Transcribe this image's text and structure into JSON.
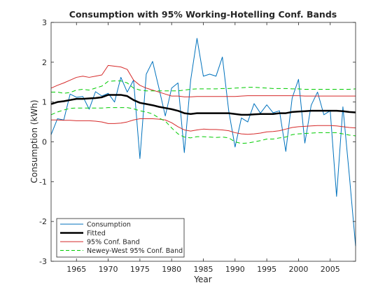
{
  "chart_data": {
    "type": "line",
    "title": "Consumption with 95% Working-Hotelling Conf. Bands",
    "xlabel": "Year",
    "ylabel": "Consumption (kWh)",
    "xlim": [
      1961,
      2009
    ],
    "ylim": [
      -3,
      3
    ],
    "xticks": [
      1965,
      1970,
      1975,
      1980,
      1985,
      1990,
      1995,
      2000,
      2005
    ],
    "yticks": [
      -3,
      -2,
      -1,
      0,
      1,
      2,
      3
    ],
    "grid": false,
    "legend_position": "bottom-left",
    "x": [
      1961,
      1962,
      1963,
      1964,
      1965,
      1966,
      1967,
      1968,
      1969,
      1970,
      1971,
      1972,
      1973,
      1974,
      1975,
      1976,
      1977,
      1978,
      1979,
      1980,
      1981,
      1982,
      1983,
      1984,
      1985,
      1986,
      1987,
      1988,
      1989,
      1990,
      1991,
      1992,
      1993,
      1994,
      1995,
      1996,
      1997,
      1998,
      1999,
      2000,
      2001,
      2002,
      2003,
      2004,
      2005,
      2006,
      2007,
      2008,
      2009
    ],
    "series": [
      {
        "name": "Consumption",
        "color": "#0072bd",
        "style": "solid",
        "values": [
          0.18,
          0.58,
          0.55,
          1.2,
          1.12,
          1.14,
          0.82,
          1.26,
          1.15,
          1.22,
          1.0,
          1.62,
          1.25,
          1.55,
          -0.42,
          1.7,
          2.02,
          1.35,
          0.65,
          1.35,
          1.48,
          -0.27,
          1.55,
          2.6,
          1.65,
          1.7,
          1.65,
          2.13,
          0.78,
          -0.13,
          0.6,
          0.5,
          0.96,
          0.72,
          0.93,
          0.73,
          0.78,
          -0.24,
          1.1,
          1.57,
          -0.03,
          0.92,
          1.25,
          0.68,
          0.78,
          -1.37,
          0.88,
          -0.82,
          -2.62
        ]
      },
      {
        "name": "Fitted",
        "color": "#000000",
        "style": "solid-thick",
        "values": [
          0.95,
          1.0,
          1.02,
          1.05,
          1.08,
          1.08,
          1.09,
          1.1,
          1.12,
          1.18,
          1.18,
          1.18,
          1.15,
          1.05,
          0.98,
          0.95,
          0.92,
          0.88,
          0.85,
          0.82,
          0.78,
          0.72,
          0.7,
          0.72,
          0.72,
          0.72,
          0.72,
          0.72,
          0.72,
          0.7,
          0.68,
          0.68,
          0.69,
          0.7,
          0.7,
          0.7,
          0.72,
          0.72,
          0.75,
          0.76,
          0.77,
          0.78,
          0.78,
          0.78,
          0.78,
          0.78,
          0.77,
          0.75,
          0.74
        ]
      },
      {
        "name": "95% Conf. Band",
        "color": "#d62a2a",
        "style": "solid",
        "values": [
          1.35,
          1.42,
          1.48,
          1.55,
          1.62,
          1.65,
          1.62,
          1.65,
          1.68,
          1.92,
          1.9,
          1.88,
          1.82,
          1.55,
          1.42,
          1.35,
          1.3,
          1.25,
          1.2,
          1.15,
          1.15,
          1.13,
          1.13,
          1.14,
          1.14,
          1.14,
          1.14,
          1.14,
          1.14,
          1.14,
          1.15,
          1.16,
          1.16,
          1.16,
          1.16,
          1.16,
          1.16,
          1.16,
          1.16,
          1.16,
          1.15,
          1.15,
          1.15,
          1.15,
          1.15,
          1.15,
          1.15,
          1.15,
          1.15
        ]
      },
      {
        "name": "95% Conf. Band (lower)",
        "color": "#d62a2a",
        "style": "solid",
        "values": [
          0.55,
          0.55,
          0.54,
          0.54,
          0.53,
          0.53,
          0.53,
          0.52,
          0.5,
          0.46,
          0.46,
          0.47,
          0.5,
          0.55,
          0.58,
          0.58,
          0.58,
          0.57,
          0.55,
          0.48,
          0.38,
          0.3,
          0.27,
          0.3,
          0.32,
          0.31,
          0.31,
          0.3,
          0.28,
          0.23,
          0.2,
          0.19,
          0.2,
          0.22,
          0.25,
          0.26,
          0.28,
          0.32,
          0.36,
          0.38,
          0.39,
          0.4,
          0.41,
          0.41,
          0.41,
          0.4,
          0.38,
          0.36,
          0.35
        ]
      },
      {
        "name": "Newey-West 95% Conf. Band",
        "color": "#00cc00",
        "style": "dashed",
        "values": [
          1.25,
          1.25,
          1.22,
          1.24,
          1.3,
          1.32,
          1.3,
          1.35,
          1.4,
          1.52,
          1.53,
          1.53,
          1.48,
          1.35,
          1.3,
          1.28,
          1.28,
          1.28,
          1.28,
          1.28,
          1.28,
          1.3,
          1.32,
          1.33,
          1.33,
          1.33,
          1.33,
          1.34,
          1.34,
          1.35,
          1.36,
          1.37,
          1.37,
          1.36,
          1.35,
          1.34,
          1.34,
          1.34,
          1.33,
          1.33,
          1.32,
          1.32,
          1.32,
          1.32,
          1.32,
          1.32,
          1.32,
          1.32,
          1.33
        ]
      },
      {
        "name": "Newey-West 95% Conf. Band (lower)",
        "color": "#00cc00",
        "style": "dashed",
        "values": [
          0.68,
          0.75,
          0.8,
          0.84,
          0.85,
          0.85,
          0.85,
          0.85,
          0.85,
          0.86,
          0.86,
          0.86,
          0.86,
          0.83,
          0.78,
          0.75,
          0.7,
          0.6,
          0.52,
          0.35,
          0.2,
          0.12,
          0.1,
          0.13,
          0.13,
          0.12,
          0.11,
          0.12,
          0.1,
          0.0,
          -0.04,
          -0.03,
          0.0,
          0.03,
          0.07,
          0.07,
          0.1,
          0.12,
          0.18,
          0.2,
          0.21,
          0.22,
          0.23,
          0.23,
          0.23,
          0.23,
          0.2,
          0.17,
          0.15
        ]
      }
    ],
    "legend": [
      {
        "label": "Consumption",
        "color": "#0072bd",
        "style": "solid"
      },
      {
        "label": "Fitted",
        "color": "#000000",
        "style": "solid-thick"
      },
      {
        "label": "95% Conf. Band",
        "color": "#d62a2a",
        "style": "solid"
      },
      {
        "label": "Newey-West 95% Conf. Band",
        "color": "#00cc00",
        "style": "dashed"
      }
    ]
  }
}
